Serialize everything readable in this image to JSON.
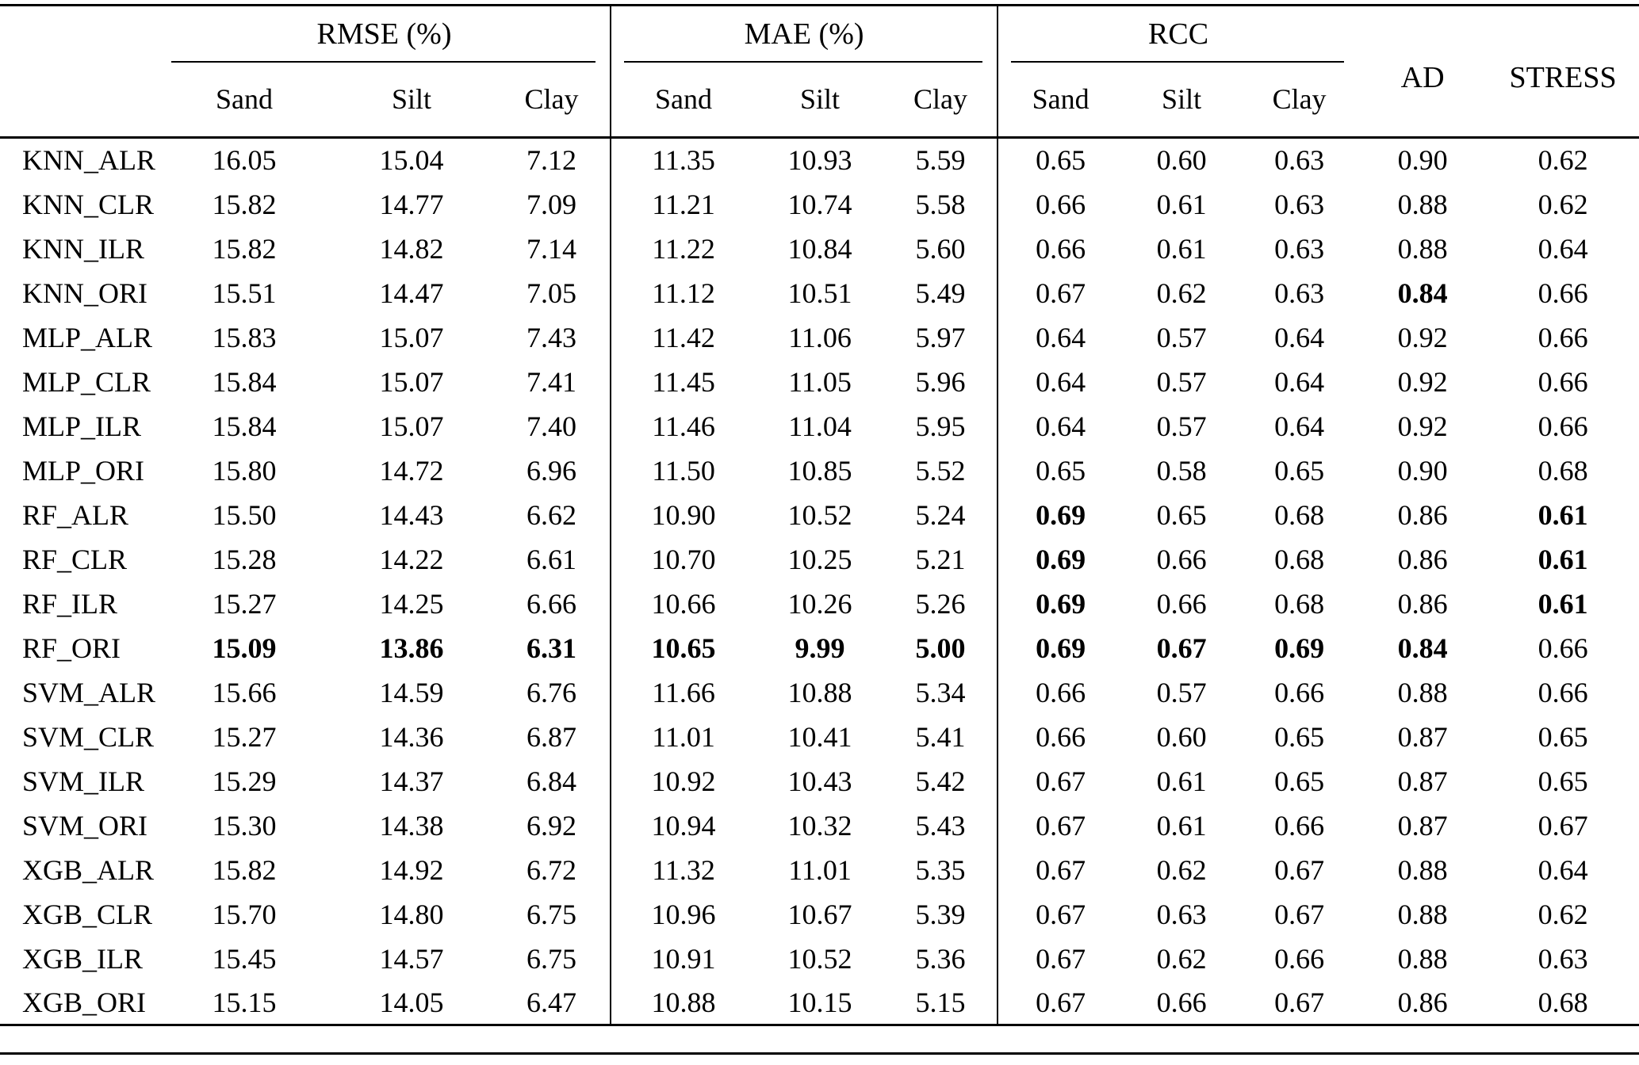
{
  "colors": {
    "text": "#000000",
    "background": "#ffffff",
    "rule": "#000000"
  },
  "table": {
    "column_groups": [
      {
        "label": "RMSE (%)",
        "subcolumns": [
          "Sand",
          "Silt",
          "Clay"
        ]
      },
      {
        "label": "MAE (%)",
        "subcolumns": [
          "Sand",
          "Silt",
          "Clay"
        ]
      },
      {
        "label": "RCC",
        "subcolumns": [
          "Sand",
          "Silt",
          "Clay"
        ]
      }
    ],
    "scalar_columns": [
      "AD",
      "STRESS"
    ],
    "rows": [
      {
        "model": "KNN_ALR",
        "values": [
          "16.05",
          "15.04",
          "7.12",
          "11.35",
          "10.93",
          "5.59",
          "0.65",
          "0.60",
          "0.63",
          "0.90",
          "0.62"
        ],
        "bold": []
      },
      {
        "model": "KNN_CLR",
        "values": [
          "15.82",
          "14.77",
          "7.09",
          "11.21",
          "10.74",
          "5.58",
          "0.66",
          "0.61",
          "0.63",
          "0.88",
          "0.62"
        ],
        "bold": []
      },
      {
        "model": "KNN_ILR",
        "values": [
          "15.82",
          "14.82",
          "7.14",
          "11.22",
          "10.84",
          "5.60",
          "0.66",
          "0.61",
          "0.63",
          "0.88",
          "0.64"
        ],
        "bold": []
      },
      {
        "model": "KNN_ORI",
        "values": [
          "15.51",
          "14.47",
          "7.05",
          "11.12",
          "10.51",
          "5.49",
          "0.67",
          "0.62",
          "0.63",
          "0.84",
          "0.66"
        ],
        "bold": [
          9
        ]
      },
      {
        "model": "MLP_ALR",
        "values": [
          "15.83",
          "15.07",
          "7.43",
          "11.42",
          "11.06",
          "5.97",
          "0.64",
          "0.57",
          "0.64",
          "0.92",
          "0.66"
        ],
        "bold": []
      },
      {
        "model": "MLP_CLR",
        "values": [
          "15.84",
          "15.07",
          "7.41",
          "11.45",
          "11.05",
          "5.96",
          "0.64",
          "0.57",
          "0.64",
          "0.92",
          "0.66"
        ],
        "bold": []
      },
      {
        "model": "MLP_ILR",
        "values": [
          "15.84",
          "15.07",
          "7.40",
          "11.46",
          "11.04",
          "5.95",
          "0.64",
          "0.57",
          "0.64",
          "0.92",
          "0.66"
        ],
        "bold": []
      },
      {
        "model": "MLP_ORI",
        "values": [
          "15.80",
          "14.72",
          "6.96",
          "11.50",
          "10.85",
          "5.52",
          "0.65",
          "0.58",
          "0.65",
          "0.90",
          "0.68"
        ],
        "bold": []
      },
      {
        "model": "RF_ALR",
        "values": [
          "15.50",
          "14.43",
          "6.62",
          "10.90",
          "10.52",
          "5.24",
          "0.69",
          "0.65",
          "0.68",
          "0.86",
          "0.61"
        ],
        "bold": [
          6,
          10
        ]
      },
      {
        "model": "RF_CLR",
        "values": [
          "15.28",
          "14.22",
          "6.61",
          "10.70",
          "10.25",
          "5.21",
          "0.69",
          "0.66",
          "0.68",
          "0.86",
          "0.61"
        ],
        "bold": [
          6,
          10
        ]
      },
      {
        "model": "RF_ILR",
        "values": [
          "15.27",
          "14.25",
          "6.66",
          "10.66",
          "10.26",
          "5.26",
          "0.69",
          "0.66",
          "0.68",
          "0.86",
          "0.61"
        ],
        "bold": [
          6,
          10
        ]
      },
      {
        "model": "RF_ORI",
        "values": [
          "15.09",
          "13.86",
          "6.31",
          "10.65",
          "9.99",
          "5.00",
          "0.69",
          "0.67",
          "0.69",
          "0.84",
          "0.66"
        ],
        "bold": [
          0,
          1,
          2,
          3,
          4,
          5,
          6,
          7,
          8,
          9
        ]
      },
      {
        "model": "SVM_ALR",
        "values": [
          "15.66",
          "14.59",
          "6.76",
          "11.66",
          "10.88",
          "5.34",
          "0.66",
          "0.57",
          "0.66",
          "0.88",
          "0.66"
        ],
        "bold": []
      },
      {
        "model": "SVM_CLR",
        "values": [
          "15.27",
          "14.36",
          "6.87",
          "11.01",
          "10.41",
          "5.41",
          "0.66",
          "0.60",
          "0.65",
          "0.87",
          "0.65"
        ],
        "bold": []
      },
      {
        "model": "SVM_ILR",
        "values": [
          "15.29",
          "14.37",
          "6.84",
          "10.92",
          "10.43",
          "5.42",
          "0.67",
          "0.61",
          "0.65",
          "0.87",
          "0.65"
        ],
        "bold": []
      },
      {
        "model": "SVM_ORI",
        "values": [
          "15.30",
          "14.38",
          "6.92",
          "10.94",
          "10.32",
          "5.43",
          "0.67",
          "0.61",
          "0.66",
          "0.87",
          "0.67"
        ],
        "bold": []
      },
      {
        "model": "XGB_ALR",
        "values": [
          "15.82",
          "14.92",
          "6.72",
          "11.32",
          "11.01",
          "5.35",
          "0.67",
          "0.62",
          "0.67",
          "0.88",
          "0.64"
        ],
        "bold": []
      },
      {
        "model": "XGB_CLR",
        "values": [
          "15.70",
          "14.80",
          "6.75",
          "10.96",
          "10.67",
          "5.39",
          "0.67",
          "0.63",
          "0.67",
          "0.88",
          "0.62"
        ],
        "bold": []
      },
      {
        "model": "XGB_ILR",
        "values": [
          "15.45",
          "14.57",
          "6.75",
          "10.91",
          "10.52",
          "5.36",
          "0.67",
          "0.62",
          "0.66",
          "0.88",
          "0.63"
        ],
        "bold": []
      },
      {
        "model": "XGB_ORI",
        "values": [
          "15.15",
          "14.05",
          "6.47",
          "10.88",
          "10.15",
          "5.15",
          "0.67",
          "0.66",
          "0.67",
          "0.86",
          "0.68"
        ],
        "bold": []
      }
    ]
  }
}
